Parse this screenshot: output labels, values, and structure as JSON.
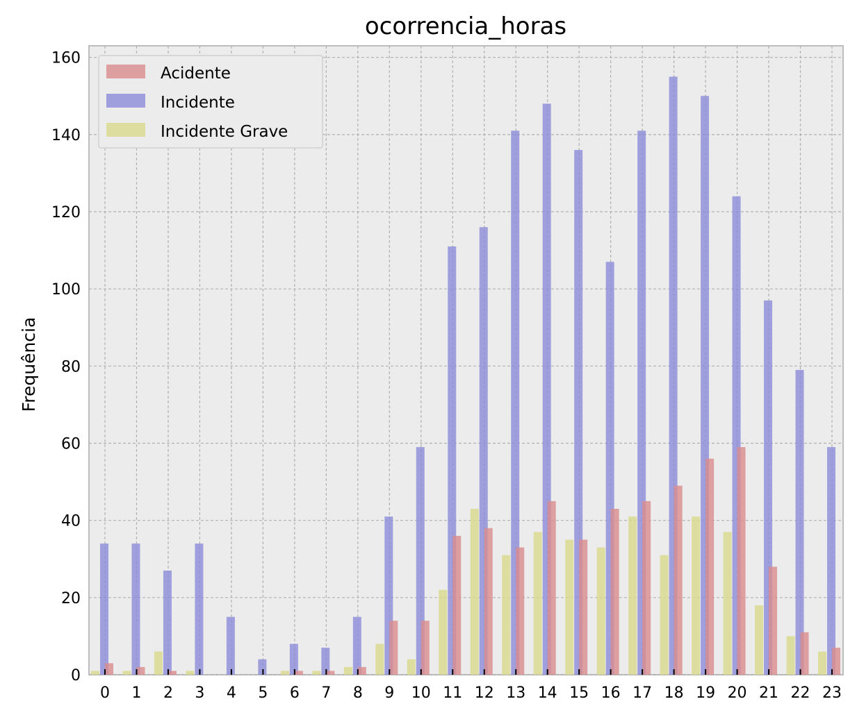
{
  "chart_data": {
    "type": "bar",
    "title": "ocorrencia_horas",
    "xlabel": "",
    "ylabel": "Frequência",
    "ylim": [
      0,
      163
    ],
    "yticks": [
      0,
      20,
      40,
      60,
      80,
      100,
      120,
      140,
      160
    ],
    "grid": true,
    "legend_position": "top-left",
    "categories": [
      "0",
      "1",
      "2",
      "3",
      "4",
      "5",
      "6",
      "7",
      "8",
      "9",
      "10",
      "11",
      "12",
      "13",
      "14",
      "15",
      "16",
      "17",
      "18",
      "19",
      "20",
      "21",
      "22",
      "23"
    ],
    "series": [
      {
        "name": "Acidente",
        "color": "#d98c8c",
        "values": [
          3,
          2,
          1,
          0,
          0,
          0,
          1,
          1,
          2,
          14,
          14,
          36,
          38,
          33,
          45,
          35,
          43,
          45,
          49,
          56,
          59,
          28,
          11,
          7
        ]
      },
      {
        "name": "Incidente",
        "color": "#8c8cd9",
        "values": [
          34,
          34,
          27,
          34,
          15,
          4,
          8,
          7,
          15,
          41,
          59,
          111,
          116,
          141,
          148,
          136,
          107,
          141,
          155,
          150,
          124,
          97,
          79,
          59
        ]
      },
      {
        "name": "Incidente Grave",
        "color": "#d9d98c",
        "values": [
          1,
          1,
          6,
          1,
          0,
          0,
          1,
          1,
          2,
          8,
          4,
          22,
          43,
          31,
          37,
          35,
          33,
          41,
          31,
          41,
          37,
          18,
          10,
          6
        ]
      }
    ]
  }
}
